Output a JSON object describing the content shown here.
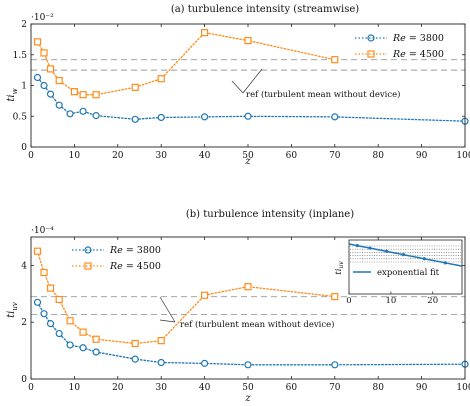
{
  "chart_data": [
    {
      "type": "line",
      "title": "(a)  turbulence intensity (streamwise)",
      "xlabel": "z",
      "ylabel": "ti_w",
      "ylabel_main": "ti",
      "ylabel_sub": "w",
      "y_exponent": "·10⁻²",
      "xlim": [
        0,
        100
      ],
      "ylim": [
        0,
        2
      ],
      "xticks": [
        0,
        10,
        20,
        30,
        40,
        50,
        60,
        70,
        80,
        90,
        100
      ],
      "yticks": [
        0,
        0.5,
        1,
        1.5,
        2
      ],
      "ytick_labels": [
        "0",
        "0.5",
        "1",
        "1.5",
        "2"
      ],
      "series": [
        {
          "name": "Re = 3800",
          "color": "#1f77b4",
          "marker": "circle",
          "x": [
            1.5,
            3,
            4.5,
            6.5,
            9,
            12,
            15,
            24,
            30,
            40,
            50,
            70,
            100
          ],
          "y": [
            1.13,
            1.0,
            0.86,
            0.68,
            0.54,
            0.58,
            0.51,
            0.45,
            0.48,
            0.49,
            0.5,
            0.49,
            0.42
          ]
        },
        {
          "name": "Re = 4500",
          "color": "#ff8c1a",
          "marker": "square",
          "x": [
            1.5,
            3,
            4.5,
            6.5,
            10,
            12,
            15,
            24,
            30,
            40,
            50,
            70
          ],
          "y": [
            1.71,
            1.53,
            1.27,
            1.08,
            0.9,
            0.85,
            0.85,
            0.97,
            1.11,
            1.86,
            1.73,
            1.42
          ]
        }
      ],
      "ref_lines": [
        1.42,
        1.25
      ],
      "annotation": "ref (turbulent mean without device)",
      "legend": {
        "position": "top-right",
        "prefix": "Re",
        "labels": [
          "= 3800",
          "= 4500"
        ]
      }
    },
    {
      "type": "line",
      "title": "(b)  turbulence intensity (inplane)",
      "xlabel": "z",
      "ylabel": "ti_uv",
      "ylabel_main": "ti",
      "ylabel_sub": "uv",
      "y_exponent": "·10⁻⁴",
      "xlim": [
        0,
        100
      ],
      "ylim": [
        0,
        5
      ],
      "xticks": [
        0,
        10,
        20,
        30,
        40,
        50,
        60,
        70,
        80,
        90,
        100
      ],
      "yticks": [
        0,
        2,
        4
      ],
      "ytick_labels": [
        "0",
        "2",
        "4"
      ],
      "series": [
        {
          "name": "Re = 3800",
          "color": "#1f77b4",
          "marker": "circle",
          "x": [
            1.5,
            3,
            4.5,
            6.5,
            9,
            12,
            15,
            24,
            30,
            40,
            50,
            70,
            100
          ],
          "y": [
            2.7,
            2.3,
            1.95,
            1.6,
            1.2,
            1.1,
            0.95,
            0.7,
            0.58,
            0.55,
            0.5,
            0.5,
            0.52
          ]
        },
        {
          "name": "Re = 4500",
          "color": "#ff8c1a",
          "marker": "square",
          "x": [
            1.5,
            3,
            4.5,
            6.5,
            9,
            12,
            15,
            24,
            30,
            40,
            50,
            70
          ],
          "y": [
            4.5,
            3.75,
            3.2,
            2.8,
            2.05,
            1.65,
            1.4,
            1.25,
            1.35,
            2.95,
            3.25,
            2.9
          ]
        }
      ],
      "ref_lines": [
        2.9,
        2.27
      ],
      "annotation": "ref (turbulent mean without device)",
      "legend": {
        "position": "top-left",
        "prefix": "Re",
        "labels": [
          "= 3800",
          "= 4500"
        ]
      },
      "inset": {
        "ylabel_main": "ti",
        "ylabel_sub": "uv",
        "xticks": [
          0,
          10,
          20
        ],
        "xtick_labels": [
          "0",
          "10",
          "20"
        ],
        "xlim": [
          0,
          27
        ],
        "legend": "exponential fit",
        "color": "#1f77b4"
      }
    }
  ]
}
